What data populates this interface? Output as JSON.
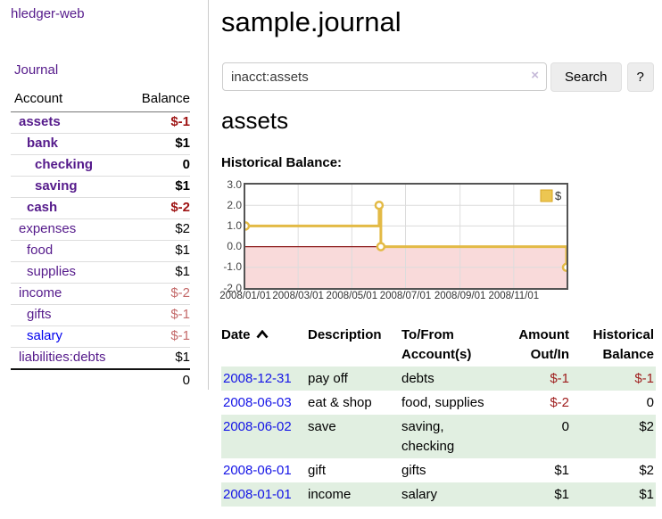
{
  "brand": "hledger-web",
  "nav": {
    "journal": "Journal"
  },
  "sidebar": {
    "headers": {
      "account": "Account",
      "balance": "Balance"
    },
    "accounts": [
      {
        "name": "assets",
        "balance": "$-1",
        "level": 1,
        "bold": true,
        "neg": "strong"
      },
      {
        "name": "bank",
        "balance": "$1",
        "level": 2,
        "bold": true,
        "neg": "none"
      },
      {
        "name": "checking",
        "balance": "0",
        "level": 3,
        "bold": true,
        "neg": "none"
      },
      {
        "name": "saving",
        "balance": "$1",
        "level": 3,
        "bold": true,
        "neg": "none"
      },
      {
        "name": "cash",
        "balance": "$-2",
        "level": 2,
        "bold": true,
        "neg": "strong"
      },
      {
        "name": "expenses",
        "balance": "$2",
        "level": 1,
        "bold": false,
        "neg": "none"
      },
      {
        "name": "food",
        "balance": "$1",
        "level": 2,
        "bold": false,
        "neg": "none"
      },
      {
        "name": "supplies",
        "balance": "$1",
        "level": 2,
        "bold": false,
        "neg": "none"
      },
      {
        "name": "income",
        "balance": "$-2",
        "level": 1,
        "bold": false,
        "neg": "soft"
      },
      {
        "name": "gifts",
        "balance": "$-1",
        "level": 2,
        "bold": false,
        "neg": "soft"
      },
      {
        "name": "salary",
        "balance": "$-1",
        "level": 2,
        "bold": false,
        "neg": "soft",
        "unvisited": true
      },
      {
        "name": "liabilities:debts",
        "balance": "$1",
        "level": 1,
        "bold": false,
        "neg": "none"
      }
    ],
    "total": "0"
  },
  "main": {
    "title": "sample.journal",
    "search": {
      "value": "inacct:assets",
      "clear": "×",
      "search_button": "Search",
      "help_button": "?"
    },
    "account_heading": "assets",
    "section_label": "Historical Balance:"
  },
  "chart_data": {
    "type": "line",
    "step": true,
    "title": "Historical Balance",
    "series": [
      {
        "name": "$",
        "color": "#e3ba45",
        "points": [
          {
            "date": "2008-01-01",
            "value": 1
          },
          {
            "date": "2008-06-01",
            "value": 2
          },
          {
            "date": "2008-06-03",
            "value": 0
          },
          {
            "date": "2008-12-31",
            "value": -1
          }
        ]
      }
    ],
    "ylim": [
      -2,
      3
    ],
    "ytick_labels": [
      "3.0",
      "2.0",
      "1.0",
      "0.0",
      "-1.0",
      "-2.0"
    ],
    "ytick_values": [
      3,
      2,
      1,
      0,
      -1,
      -2
    ],
    "xtick_labels": [
      "2008/01/01",
      "2008/03/01",
      "2008/05/01",
      "2008/07/01",
      "2008/09/01",
      "2008/11/01"
    ],
    "xtick_days": [
      0,
      60,
      121,
      182,
      244,
      305
    ],
    "x_range_days": [
      0,
      365
    ],
    "legend": {
      "label": "$",
      "position": "top-right",
      "swatch_fill": "#ecc652",
      "swatch_border": "#d8a621"
    },
    "grid": true,
    "negative_fill": "#f9dada",
    "zero_line_color": "#8c1a1a",
    "grid_line_color": "#dcdcdc",
    "border_color": "#545454"
  },
  "register": {
    "headers": {
      "date": "Date",
      "description": "Description",
      "account": "To/From Account(s)",
      "amount": "Amount Out/In",
      "balance": "Historical Balance"
    },
    "sort": {
      "column": "date",
      "direction": "ascending"
    },
    "rows": [
      {
        "date": "2008-12-31",
        "description": "pay off",
        "account": "debts",
        "amount": "$-1",
        "amount_negative": true,
        "balance": "$-1",
        "balance_negative": true
      },
      {
        "date": "2008-06-03",
        "description": "eat & shop",
        "account": "food, supplies",
        "amount": "$-2",
        "amount_negative": true,
        "balance": "0",
        "balance_negative": false
      },
      {
        "date": "2008-06-02",
        "description": "save",
        "account": "saving, checking",
        "amount": "0",
        "amount_negative": false,
        "balance": "$2",
        "balance_negative": false
      },
      {
        "date": "2008-06-01",
        "description": "gift",
        "account": "gifts",
        "amount": "$1",
        "amount_negative": false,
        "balance": "$2",
        "balance_negative": false
      },
      {
        "date": "2008-01-01",
        "description": "income",
        "account": "salary",
        "amount": "$1",
        "amount_negative": false,
        "balance": "$1",
        "balance_negative": false
      }
    ]
  },
  "colors": {
    "link_visited": "#551a8b",
    "link_unvisited": "#0000ee",
    "negative_strong": "#9e1313",
    "negative_soft": "#c46a6a",
    "table_negative": "#9e1c1c",
    "row_stripe_green": "#e1efe1",
    "series_gold": "#e3ba45"
  }
}
